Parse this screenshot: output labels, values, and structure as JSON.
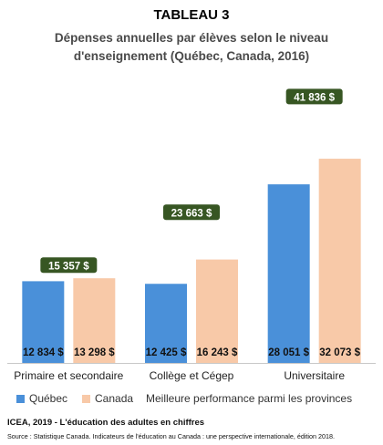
{
  "header": {
    "title": "TABLEAU 3",
    "subtitle_line1": "Dépenses annuelles par élèves selon le niveau",
    "subtitle_line2": "d'enseignement (Québec, Canada, 2016)"
  },
  "chart_data": {
    "type": "bar",
    "categories": [
      "Primaire et secondaire",
      "Collège et Cégep",
      "Universitaire"
    ],
    "series": [
      {
        "name": "Québec",
        "color": "#4a90d9",
        "values": [
          12834,
          12425,
          28051
        ],
        "labels": [
          "12 834  $",
          "12 425  $",
          "28 051  $"
        ]
      },
      {
        "name": "Canada",
        "color": "#f8c9a8",
        "values": [
          13298,
          16243,
          32073
        ],
        "labels": [
          "13 298  $",
          "16 243  $",
          "32 073  $"
        ]
      }
    ],
    "best_performance": {
      "name": "Meilleure performance parmi les provinces",
      "color": "#375623",
      "values": [
        15357,
        23663,
        41836
      ],
      "labels": [
        "15 357  $",
        "23 663  $",
        "41 836  $"
      ]
    },
    "ylim": [
      0,
      48000
    ],
    "grid": false,
    "legend_position": "bottom"
  },
  "footer": {
    "source_bold": "ICEA, 2019 - L'éducation des adultes en chiffres",
    "source_detail": "Source : Statistique Canada.  Indicateurs de l'éducation au Canada : une perspective internationale,  édition 2018."
  }
}
